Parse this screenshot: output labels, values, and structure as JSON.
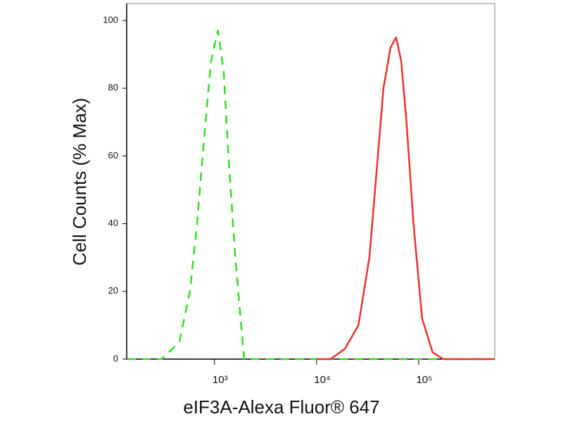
{
  "chart_data": {
    "type": "line",
    "xlabel": "eIF3A-Alexa Fluor® 647",
    "ylabel": "Cell Counts (% Max)",
    "xscale": "log",
    "xlim": [
      138,
      556000
    ],
    "ylim": [
      0,
      105
    ],
    "xticks": [
      {
        "value": 1000,
        "label": "10³"
      },
      {
        "value": 10000,
        "label": "10⁴"
      },
      {
        "value": 100000,
        "label": "10⁵"
      }
    ],
    "yticks": [
      0,
      20,
      40,
      60,
      80,
      100
    ],
    "series": [
      {
        "color": "#33dd22",
        "dash": true,
        "x": [
          140,
          304,
          452,
          575,
          675,
          790,
          925,
          1080,
          1230,
          1370,
          1600,
          1950,
          500000
        ],
        "values": [
          0,
          0,
          5,
          20,
          40,
          65,
          88,
          97,
          85,
          60,
          30,
          0,
          0
        ]
      },
      {
        "color": "#e8322d",
        "dash": false,
        "x": [
          10000,
          13700,
          18900,
          25700,
          32900,
          38600,
          45200,
          53000,
          60200,
          67400,
          76000,
          89000,
          108000,
          137000,
          174000,
          556000
        ],
        "values": [
          0,
          0,
          3,
          10,
          30,
          55,
          80,
          92,
          95,
          88,
          70,
          40,
          12,
          2,
          0,
          0
        ]
      }
    ]
  }
}
